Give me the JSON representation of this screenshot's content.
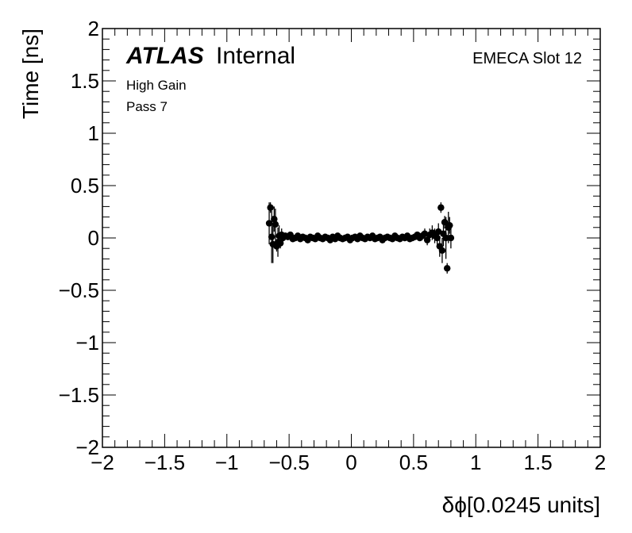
{
  "chart_data": {
    "type": "scatter",
    "title": "",
    "xlabel": "δϕ[0.0245 units]",
    "ylabel": "Time [ns]",
    "xlim": [
      -2,
      2
    ],
    "ylim": [
      -2,
      2
    ],
    "xticks": [
      "−2",
      "−1.5",
      "−1",
      "−0.5",
      "0",
      "0.5",
      "1",
      "1.5",
      "2"
    ],
    "yticks": [
      "−2",
      "−1.5",
      "−1",
      "−0.5",
      "0",
      "0.5",
      "1",
      "1.5",
      "2"
    ],
    "grid": false,
    "legend": "none",
    "marker_color": "#000000",
    "series": [
      {
        "name": "",
        "x": [
          -0.66,
          -0.65,
          -0.64,
          -0.63,
          -0.62,
          -0.61,
          -0.6,
          -0.59,
          -0.58,
          -0.57,
          -0.56,
          -0.55,
          -0.53,
          -0.51,
          -0.49,
          -0.47,
          -0.45,
          -0.43,
          -0.41,
          -0.39,
          -0.37,
          -0.35,
          -0.33,
          -0.31,
          -0.29,
          -0.27,
          -0.25,
          -0.23,
          -0.21,
          -0.19,
          -0.17,
          -0.15,
          -0.13,
          -0.11,
          -0.09,
          -0.07,
          -0.05,
          -0.03,
          -0.01,
          0.01,
          0.03,
          0.05,
          0.07,
          0.09,
          0.11,
          0.13,
          0.15,
          0.17,
          0.19,
          0.21,
          0.23,
          0.25,
          0.27,
          0.29,
          0.31,
          0.33,
          0.35,
          0.37,
          0.39,
          0.41,
          0.43,
          0.45,
          0.47,
          0.49,
          0.51,
          0.53,
          0.55,
          0.57,
          0.59,
          0.61,
          0.63,
          0.65,
          0.67,
          0.69,
          0.7,
          0.71,
          0.72,
          0.73,
          0.74,
          0.75,
          0.76,
          0.77,
          0.78,
          0.79,
          0.8
        ],
        "y": [
          0.14,
          0.29,
          0.01,
          -0.06,
          0.18,
          0.13,
          -0.08,
          -0.04,
          0.02,
          -0.05,
          0.03,
          0.0,
          0.02,
          0.01,
          0.03,
          -0.01,
          0.0,
          0.02,
          -0.01,
          0.01,
          0.0,
          -0.02,
          0.01,
          0.0,
          -0.01,
          0.02,
          0.0,
          -0.01,
          0.01,
          0.0,
          -0.02,
          0.01,
          -0.01,
          0.02,
          0.0,
          -0.01,
          0.0,
          0.01,
          -0.02,
          0.0,
          0.01,
          -0.01,
          0.02,
          0.0,
          -0.01,
          0.01,
          0.0,
          0.02,
          -0.01,
          0.0,
          0.01,
          -0.02,
          0.0,
          0.01,
          0.0,
          -0.01,
          0.02,
          0.0,
          -0.01,
          0.01,
          0.0,
          0.02,
          -0.01,
          0.0,
          0.01,
          0.03,
          0.0,
          0.02,
          0.04,
          -0.02,
          0.03,
          0.05,
          0.02,
          0.0,
          0.06,
          -0.08,
          0.29,
          -0.12,
          0.04,
          0.15,
          0.0,
          -0.29,
          0.1,
          0.12,
          0.0
        ],
        "yerr": [
          0.2,
          0.05,
          0.25,
          0.18,
          0.12,
          0.15,
          0.05,
          0.14,
          0.1,
          0.05,
          0.06,
          0.05,
          0.03,
          0.03,
          0.02,
          0.02,
          0.02,
          0.02,
          0.02,
          0.02,
          0.02,
          0.02,
          0.02,
          0.02,
          0.02,
          0.02,
          0.02,
          0.02,
          0.02,
          0.02,
          0.02,
          0.02,
          0.02,
          0.02,
          0.02,
          0.02,
          0.02,
          0.02,
          0.02,
          0.02,
          0.02,
          0.02,
          0.02,
          0.02,
          0.02,
          0.02,
          0.02,
          0.02,
          0.02,
          0.02,
          0.02,
          0.02,
          0.02,
          0.02,
          0.02,
          0.02,
          0.02,
          0.02,
          0.02,
          0.02,
          0.02,
          0.02,
          0.02,
          0.02,
          0.02,
          0.03,
          0.03,
          0.04,
          0.05,
          0.05,
          0.06,
          0.07,
          0.07,
          0.08,
          0.08,
          0.1,
          0.05,
          0.12,
          0.12,
          0.06,
          0.2,
          0.05,
          0.15,
          0.08,
          0.1
        ]
      }
    ],
    "annotations": {
      "atlas": "ATLAS",
      "internal": "Internal",
      "gain": "High Gain",
      "pass": "Pass 7",
      "slot": "EMECA Slot 12"
    }
  }
}
